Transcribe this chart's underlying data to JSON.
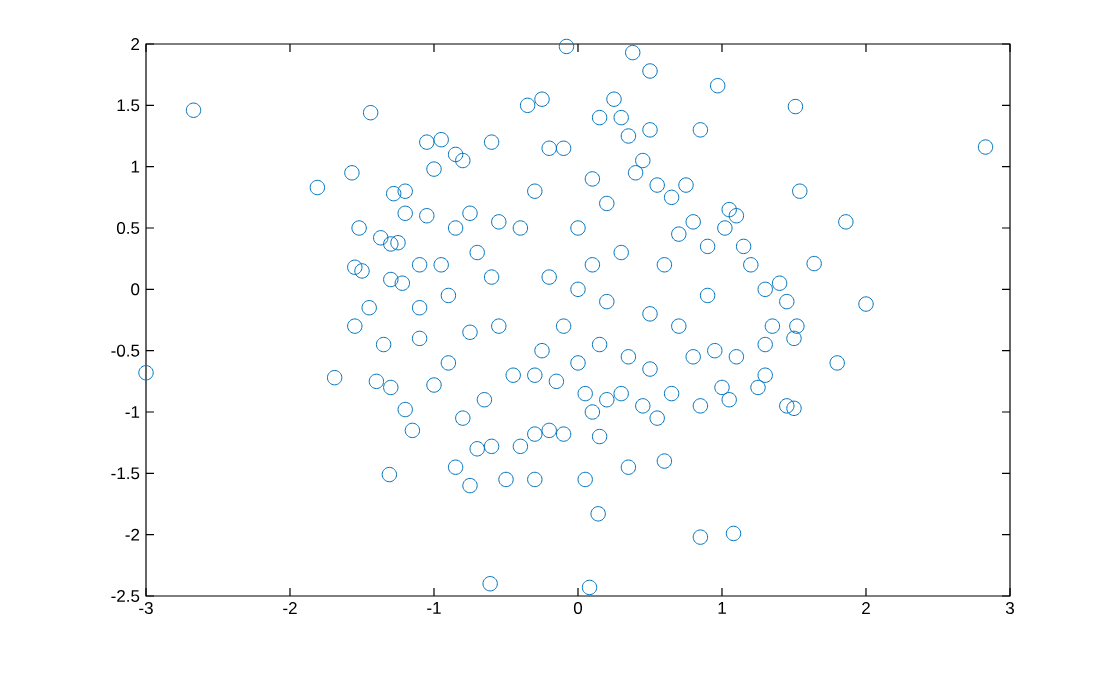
{
  "chart_data": {
    "type": "scatter",
    "marker": "circle",
    "color": "#0072bd",
    "x": [
      -2.67,
      -1.44,
      -1.81,
      -1.57,
      -3.0,
      -1.69,
      -1.31,
      -0.61,
      0.08,
      0.85,
      1.08,
      0.14,
      2.83,
      2.0,
      1.86,
      1.64,
      1.54,
      -0.08,
      0.38,
      0.5,
      0.97,
      1.51,
      0.85,
      -1.05,
      -0.95,
      -0.85,
      -1.0,
      -0.6,
      -0.8,
      -1.28,
      -1.2,
      -1.52,
      -1.37,
      -1.3,
      -1.25,
      -1.2,
      -1.05,
      -0.85,
      -0.75,
      -0.55,
      -1.55,
      -1.5,
      -1.3,
      -1.22,
      -1.1,
      -0.95,
      -0.7,
      -1.45,
      -1.1,
      -0.9,
      -0.6,
      -1.55,
      -1.35,
      -1.4,
      -1.3,
      -1.2,
      -1.15,
      -1.0,
      -0.9,
      -1.1,
      -0.75,
      -0.8,
      -0.65,
      -0.6,
      -0.7,
      -0.5,
      -0.85,
      -0.75,
      -0.3,
      -0.4,
      -0.45,
      -0.3,
      -0.55,
      -0.3,
      -0.1,
      -0.2,
      -0.4,
      -0.3,
      -0.2,
      -0.35,
      -0.25,
      -0.1,
      0.0,
      0.1,
      0.2,
      0.3,
      0.35,
      0.25,
      0.15,
      0.5,
      0.45,
      0.4,
      0.55,
      0.65,
      0.75,
      0.0,
      0.1,
      -0.2,
      0.2,
      0.3,
      -0.1,
      0.15,
      0.35,
      0.5,
      0.6,
      0.7,
      0.8,
      0.9,
      1.05,
      1.1,
      1.15,
      1.2,
      1.3,
      1.4,
      1.45,
      1.02,
      0.9,
      0.7,
      0.8,
      0.95,
      1.1,
      1.3,
      1.35,
      1.5,
      1.52,
      1.8,
      1.25,
      1.3,
      1.45,
      1.5,
      1.05,
      1.0,
      0.85,
      0.65,
      0.5,
      0.55,
      0.45,
      0.3,
      0.2,
      0.1,
      0.05,
      0.15,
      0.35,
      0.05,
      0.6,
      -0.15,
      -0.25,
      0.0
    ],
    "values": [
      1.46,
      1.44,
      0.83,
      0.95,
      -0.68,
      -0.72,
      -1.51,
      -2.4,
      -2.43,
      -2.02,
      -1.99,
      -1.83,
      1.16,
      -0.12,
      0.55,
      0.21,
      0.8,
      1.98,
      1.93,
      1.78,
      1.66,
      1.49,
      1.3,
      1.2,
      1.22,
      1.1,
      0.98,
      1.2,
      1.05,
      0.78,
      0.8,
      0.5,
      0.42,
      0.37,
      0.38,
      0.62,
      0.6,
      0.5,
      0.62,
      0.55,
      0.18,
      0.15,
      0.08,
      0.05,
      0.2,
      0.2,
      0.3,
      -0.15,
      -0.15,
      -0.05,
      0.1,
      -0.3,
      -0.45,
      -0.75,
      -0.8,
      -0.98,
      -1.15,
      -0.78,
      -0.6,
      -0.4,
      -0.35,
      -1.05,
      -0.9,
      -1.28,
      -1.3,
      -1.55,
      -1.45,
      -1.6,
      -1.55,
      -1.28,
      -0.7,
      -0.7,
      -0.3,
      -1.18,
      -1.18,
      -1.15,
      0.5,
      0.8,
      1.15,
      1.5,
      1.55,
      1.15,
      0.5,
      0.9,
      0.7,
      1.4,
      1.25,
      1.55,
      1.4,
      1.3,
      1.05,
      0.95,
      0.85,
      0.75,
      0.85,
      0.0,
      0.2,
      0.1,
      -0.1,
      0.3,
      -0.3,
      -0.45,
      -0.55,
      -0.2,
      0.2,
      0.45,
      0.55,
      0.35,
      0.65,
      0.6,
      0.35,
      0.2,
      0.0,
      0.05,
      -0.1,
      0.5,
      -0.05,
      -0.3,
      -0.55,
      -0.5,
      -0.55,
      -0.45,
      -0.3,
      -0.4,
      -0.3,
      -0.6,
      -0.8,
      -0.7,
      -0.95,
      -0.97,
      -0.9,
      -0.8,
      -0.95,
      -0.85,
      -0.65,
      -1.05,
      -0.95,
      -0.85,
      -0.9,
      -1.0,
      -0.85,
      -1.2,
      -1.45,
      -1.55,
      -1.4,
      -0.75,
      -0.5,
      -0.6
    ],
    "xlim": [
      -3,
      3
    ],
    "ylim": [
      -2.5,
      2
    ],
    "xticks": [
      -3,
      -2,
      -1,
      0,
      1,
      2,
      3
    ],
    "yticks": [
      -2.5,
      -2,
      -1.5,
      -1,
      -0.5,
      0,
      0.5,
      1,
      1.5,
      2
    ]
  }
}
